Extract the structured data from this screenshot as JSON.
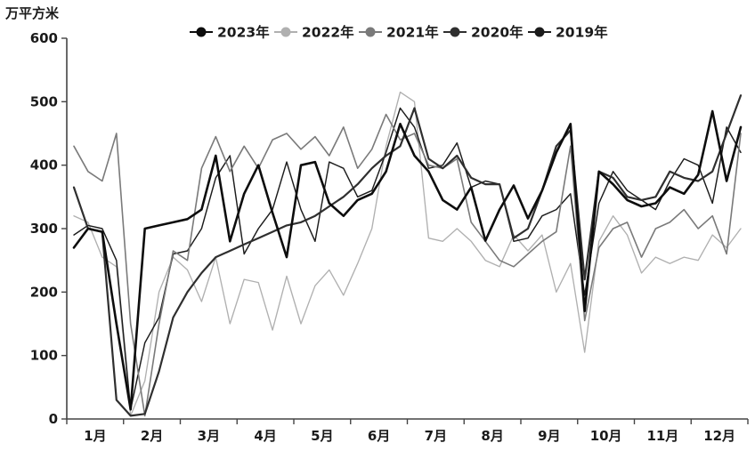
{
  "page": {
    "background": "#ffffff",
    "text_color": "#1a1a1a"
  },
  "chart_data": {
    "type": "line",
    "title": "",
    "ylabel": "万平方米",
    "xlabel": "",
    "ylim": [
      0,
      600
    ],
    "y_tick_labels": [
      "0",
      "100",
      "200",
      "300",
      "400",
      "500",
      "600"
    ],
    "x_categories": [
      "1月",
      "2月",
      "3月",
      "4月",
      "5月",
      "6月",
      "7月",
      "8月",
      "9月",
      "10月",
      "11月",
      "12月"
    ],
    "points_per_month": 4,
    "grid": false,
    "legend_position": "top-center",
    "legend_marker": "circle-on-line",
    "series": [
      {
        "name": "2023年",
        "color": "#0d0d0d",
        "width": 2.6,
        "values": [
          270,
          300,
          295,
          150,
          15,
          300,
          305,
          310,
          315,
          330,
          415,
          280,
          355,
          400,
          325,
          255,
          400,
          405,
          340,
          320,
          345,
          355,
          390,
          465,
          415,
          390,
          345,
          330,
          365,
          281,
          330,
          368,
          316,
          360,
          420,
          465,
          170,
          390,
          370,
          345,
          335,
          340,
          365,
          355,
          385,
          485,
          375,
          460
        ]
      },
      {
        "name": "2022年",
        "color": "#b0b0b0",
        "width": 1.35,
        "values": [
          320,
          310,
          255,
          240,
          5,
          60,
          200,
          255,
          235,
          185,
          255,
          150,
          220,
          215,
          140,
          225,
          150,
          210,
          235,
          195,
          245,
          300,
          430,
          515,
          500,
          285,
          280,
          300,
          280,
          250,
          240,
          290,
          265,
          290,
          200,
          245,
          105,
          280,
          320,
          290,
          230,
          255,
          245,
          255,
          250,
          290,
          270,
          300
        ]
      },
      {
        "name": "2021年",
        "color": "#7a7a7a",
        "width": 1.6,
        "values": [
          430,
          390,
          375,
          450,
          150,
          5,
          150,
          265,
          250,
          395,
          445,
          390,
          430,
          395,
          440,
          450,
          425,
          445,
          415,
          460,
          395,
          425,
          480,
          440,
          450,
          400,
          395,
          410,
          310,
          280,
          250,
          240,
          260,
          280,
          295,
          430,
          155,
          270,
          300,
          310,
          255,
          300,
          310,
          330,
          300,
          320,
          260,
          450
        ]
      },
      {
        "name": "2020年",
        "color": "#2f2f2f",
        "width": 2.2,
        "values": [
          365,
          300,
          295,
          30,
          5,
          8,
          75,
          160,
          200,
          230,
          255,
          265,
          275,
          285,
          295,
          305,
          310,
          320,
          335,
          350,
          370,
          395,
          415,
          430,
          490,
          410,
          395,
          415,
          380,
          370,
          370,
          285,
          300,
          360,
          430,
          455,
          220,
          390,
          380,
          350,
          345,
          350,
          390,
          380,
          375,
          390,
          450,
          510
        ]
      },
      {
        "name": "2019年",
        "color": "#1c1c1c",
        "width": 1.45,
        "values": [
          290,
          305,
          300,
          250,
          15,
          120,
          160,
          260,
          265,
          300,
          380,
          415,
          260,
          300,
          330,
          405,
          330,
          280,
          405,
          395,
          350,
          360,
          420,
          490,
          460,
          395,
          400,
          435,
          365,
          375,
          370,
          280,
          285,
          320,
          330,
          355,
          195,
          340,
          390,
          360,
          345,
          330,
          375,
          410,
          400,
          340,
          460,
          420
        ]
      }
    ]
  }
}
